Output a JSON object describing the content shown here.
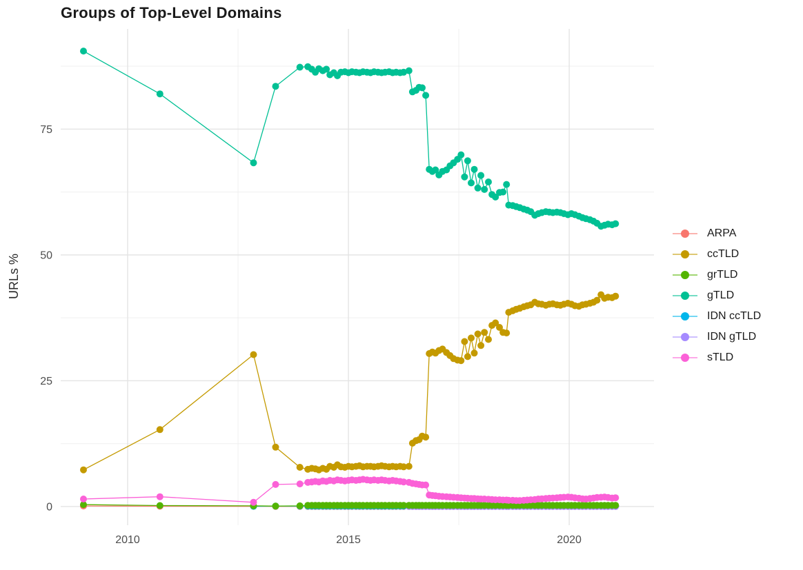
{
  "title": "Groups of Top-Level Domains",
  "legend": {
    "items": [
      {
        "label": "ARPA",
        "color": "#F8766D"
      },
      {
        "label": "ccTLD",
        "color": "#C49A00"
      },
      {
        "label": "grTLD",
        "color": "#53B400"
      },
      {
        "label": "gTLD",
        "color": "#00C094"
      },
      {
        "label": "IDN ccTLD",
        "color": "#00B6EB"
      },
      {
        "label": "IDN gTLD",
        "color": "#A58AFF"
      },
      {
        "label": "sTLD",
        "color": "#FB61D7"
      }
    ]
  },
  "chart_data": {
    "type": "line",
    "title": "Groups of Top-Level Domains",
    "xlabel": "",
    "ylabel": "URLs %",
    "x_range": [
      2008.484,
      2021.92
    ],
    "y_range": [
      -3.7,
      94.9
    ],
    "x_major_ticks": [
      2010,
      2015,
      2020
    ],
    "x_minor_ticks": [
      2012.5,
      2017.5
    ],
    "y_major_ticks": [
      0,
      25,
      50,
      75
    ],
    "y_minor_ticks": [
      12.5,
      37.5,
      62.5,
      87.5
    ],
    "grid": true,
    "legend_position": "right",
    "colors": {
      "major_grid": "#e4e4e4",
      "minor_grid": "#efefef",
      "tick_label": "#4d4d4d"
    },
    "x": [
      2009.0,
      2010.73,
      2012.85,
      2013.35,
      2013.9,
      2014.08,
      2014.17,
      2014.25,
      2014.33,
      2014.42,
      2014.5,
      2014.58,
      2014.67,
      2014.75,
      2014.83,
      2014.92,
      2015.0,
      2015.08,
      2015.17,
      2015.25,
      2015.33,
      2015.42,
      2015.5,
      2015.58,
      2015.67,
      2015.75,
      2015.83,
      2015.92,
      2016.0,
      2016.08,
      2016.17,
      2016.25,
      2016.37,
      2016.45,
      2016.53,
      2016.6,
      2016.67,
      2016.75,
      2016.83,
      2016.9,
      2016.97,
      2017.05,
      2017.13,
      2017.22,
      2017.3,
      2017.38,
      2017.47,
      2017.55,
      2017.63,
      2017.7,
      2017.78,
      2017.85,
      2017.93,
      2018.0,
      2018.08,
      2018.17,
      2018.25,
      2018.33,
      2018.42,
      2018.5,
      2018.58,
      2018.63,
      2018.72,
      2018.8,
      2018.88,
      2018.97,
      2019.05,
      2019.13,
      2019.22,
      2019.3,
      2019.38,
      2019.47,
      2019.55,
      2019.63,
      2019.72,
      2019.8,
      2019.88,
      2019.97,
      2020.05,
      2020.13,
      2020.22,
      2020.3,
      2020.38,
      2020.47,
      2020.55,
      2020.63,
      2020.72,
      2020.8,
      2020.88,
      2020.97,
      2021.05
    ],
    "series": [
      {
        "name": "ARPA",
        "color": "#F8766D",
        "values": [
          0.12,
          0.06,
          0.05,
          0.04
        ]
      },
      {
        "name": "IDN ccTLD",
        "color": "#00B6EB",
        "values": [
          null,
          null,
          0.05,
          0.1
        ]
      },
      {
        "name": "IDN gTLD",
        "color": "#A58AFF",
        "values": [
          null,
          null,
          null,
          null,
          null,
          null,
          null,
          null,
          null,
          null,
          null,
          null,
          null,
          null,
          null,
          null,
          null,
          null,
          null,
          null,
          null,
          null,
          null,
          null,
          null,
          null,
          null,
          null,
          null,
          null,
          null,
          null,
          0.03
        ]
      },
      {
        "name": "grTLD",
        "color": "#53B400",
        "values": [
          0.4,
          0.2,
          0.15,
          0.1,
          0.15,
          0.25
        ]
      },
      {
        "name": "ccTLD",
        "color": "#C49A00",
        "values": [
          7.3,
          15.3,
          30.2,
          11.8,
          7.8,
          7.4,
          7.6,
          7.5,
          7.3,
          7.6,
          7.4,
          8,
          7.8,
          8.3,
          7.9,
          7.8,
          8,
          7.9,
          8,
          8.1,
          7.9,
          8,
          8,
          7.9,
          8,
          8.1,
          8,
          7.9,
          8,
          7.9,
          8,
          7.9,
          8,
          12.6,
          13.1,
          13.3,
          14,
          13.8,
          30.4,
          30.7,
          30.5,
          31,
          31.3,
          30.6,
          30,
          29.4,
          29.1,
          29,
          32.8,
          29.8,
          33.5,
          30.5,
          34.3,
          32,
          34.6,
          33.2,
          36,
          36.5,
          35.6,
          34.6,
          34.5,
          38.6,
          38.9,
          39.2,
          39.4,
          39.7,
          39.9,
          40.1,
          40.6,
          40.3,
          40.2,
          40,
          40.2,
          40.3,
          40.1,
          40,
          40.2,
          40.4,
          40.2,
          39.9,
          39.8,
          40.1,
          40.2,
          40.4,
          40.6,
          41,
          42.1,
          41.4,
          41.6,
          41.5,
          41.8
        ]
      },
      {
        "name": "gTLD",
        "color": "#00C094",
        "values": [
          90.5,
          82,
          68.3,
          83.5,
          87.3,
          87.4,
          86.9,
          86.3,
          87,
          86.6,
          86.9,
          85.8,
          86.2,
          85.6,
          86.3,
          86.4,
          86.2,
          86.4,
          86.3,
          86.2,
          86.4,
          86.3,
          86.2,
          86.4,
          86.3,
          86.2,
          86.3,
          86.4,
          86.2,
          86.3,
          86.2,
          86.3,
          86.6,
          82.4,
          82.7,
          83.3,
          83.2,
          81.7,
          67,
          66.6,
          66.9,
          65.9,
          66.6,
          66.9,
          67.7,
          68.3,
          69,
          69.9,
          65.5,
          68.7,
          64.3,
          67,
          63.3,
          65.8,
          63,
          64.5,
          62,
          61.5,
          62.4,
          62.5,
          64,
          59.9,
          59.8,
          59.6,
          59.4,
          59.1,
          58.9,
          58.6,
          57.9,
          58.2,
          58.4,
          58.6,
          58.5,
          58.4,
          58.5,
          58.4,
          58.2,
          58,
          58.2,
          58,
          57.7,
          57.4,
          57.2,
          57,
          56.7,
          56.3,
          55.7,
          55.9,
          56.1,
          56,
          56.2
        ]
      },
      {
        "name": "sTLD",
        "color": "#FB61D7",
        "values": [
          1.5,
          1.95,
          0.85,
          4.4,
          4.5,
          4.8,
          4.9,
          5,
          4.9,
          5.1,
          5,
          5.2,
          5.1,
          5.3,
          5.2,
          5.1,
          5.2,
          5.3,
          5.2,
          5.3,
          5.4,
          5.3,
          5.2,
          5.3,
          5.2,
          5.3,
          5.2,
          5.1,
          5.2,
          5.1,
          5,
          4.9,
          4.8,
          4.6,
          4.5,
          4.4,
          4.3,
          4.3,
          2.3,
          2.2,
          2.15,
          2.05,
          2,
          1.95,
          1.9,
          1.85,
          1.8,
          1.75,
          1.7,
          1.65,
          1.6,
          1.6,
          1.55,
          1.5,
          1.5,
          1.45,
          1.4,
          1.35,
          1.35,
          1.3,
          1.3,
          1.25,
          1.25,
          1.2,
          1.2,
          1.25,
          1.3,
          1.35,
          1.4,
          1.5,
          1.55,
          1.6,
          1.65,
          1.7,
          1.75,
          1.8,
          1.85,
          1.9,
          1.85,
          1.75,
          1.65,
          1.55,
          1.5,
          1.6,
          1.7,
          1.8,
          1.85,
          1.9,
          1.8,
          1.7,
          1.75
        ]
      }
    ]
  }
}
